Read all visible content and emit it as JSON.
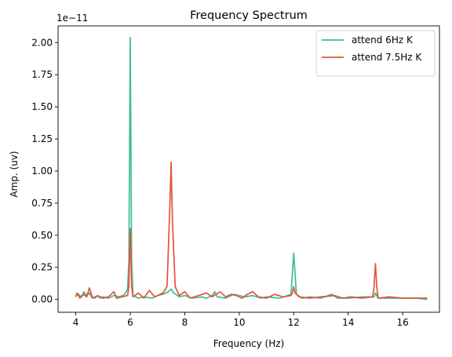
{
  "chart_data": {
    "type": "line",
    "title": "Frequency Spectrum",
    "xlabel": "Frequency (Hz)",
    "ylabel": "Amp. (uv)",
    "y_offset_label": "1e−11",
    "xlim": [
      3.35,
      17.35
    ],
    "ylim": [
      -0.1,
      2.13
    ],
    "x_ticks": [
      4,
      6,
      8,
      10,
      12,
      14,
      16
    ],
    "x_tick_labels": [
      "4",
      "6",
      "8",
      "10",
      "12",
      "14",
      "16"
    ],
    "y_ticks": [
      0.0,
      0.25,
      0.5,
      0.75,
      1.0,
      1.25,
      1.5,
      1.75,
      2.0
    ],
    "y_tick_labels": [
      "0.00",
      "0.25",
      "0.50",
      "0.75",
      "1.00",
      "1.25",
      "1.50",
      "1.75",
      "2.00"
    ],
    "y_scale_factor": 1e-11,
    "grid": false,
    "legend_position": "top-right",
    "series": [
      {
        "name": "attend 6Hz K",
        "color": "#3dbb9a",
        "points": [
          [
            4.0,
            0.03
          ],
          [
            4.1,
            0.04
          ],
          [
            4.2,
            0.02
          ],
          [
            4.3,
            0.06
          ],
          [
            4.4,
            0.03
          ],
          [
            4.5,
            0.05
          ],
          [
            4.6,
            0.01
          ],
          [
            4.7,
            0.02
          ],
          [
            4.8,
            0.03
          ],
          [
            4.9,
            0.01
          ],
          [
            5.0,
            0.02
          ],
          [
            5.2,
            0.01
          ],
          [
            5.4,
            0.03
          ],
          [
            5.6,
            0.02
          ],
          [
            5.8,
            0.04
          ],
          [
            5.9,
            0.08
          ],
          [
            5.95,
            0.3
          ],
          [
            6.0,
            2.04
          ],
          [
            6.05,
            0.3
          ],
          [
            6.1,
            0.03
          ],
          [
            6.3,
            0.01
          ],
          [
            6.5,
            0.02
          ],
          [
            6.8,
            0.01
          ],
          [
            7.0,
            0.03
          ],
          [
            7.2,
            0.04
          ],
          [
            7.4,
            0.06
          ],
          [
            7.5,
            0.08
          ],
          [
            7.6,
            0.05
          ],
          [
            7.8,
            0.02
          ],
          [
            8.0,
            0.03
          ],
          [
            8.3,
            0.01
          ],
          [
            8.6,
            0.02
          ],
          [
            8.8,
            0.01
          ],
          [
            9.0,
            0.03
          ],
          [
            9.1,
            0.06
          ],
          [
            9.2,
            0.02
          ],
          [
            9.5,
            0.01
          ],
          [
            9.8,
            0.04
          ],
          [
            10.0,
            0.03
          ],
          [
            10.2,
            0.02
          ],
          [
            10.5,
            0.03
          ],
          [
            10.8,
            0.01
          ],
          [
            11.0,
            0.02
          ],
          [
            11.5,
            0.01
          ],
          [
            11.9,
            0.04
          ],
          [
            12.0,
            0.36
          ],
          [
            12.1,
            0.04
          ],
          [
            12.3,
            0.01
          ],
          [
            12.6,
            0.02
          ],
          [
            13.0,
            0.01
          ],
          [
            13.4,
            0.04
          ],
          [
            13.6,
            0.01
          ],
          [
            14.0,
            0.01
          ],
          [
            14.5,
            0.02
          ],
          [
            14.95,
            0.02
          ],
          [
            15.0,
            0.05
          ],
          [
            15.1,
            0.01
          ],
          [
            15.5,
            0.01
          ],
          [
            16.0,
            0.01
          ],
          [
            16.5,
            0.01
          ],
          [
            16.9,
            0.0
          ]
        ]
      },
      {
        "name": "attend 7.5Hz K",
        "color": "#e2543a",
        "points": [
          [
            4.0,
            0.02
          ],
          [
            4.05,
            0.05
          ],
          [
            4.15,
            0.01
          ],
          [
            4.3,
            0.04
          ],
          [
            4.4,
            0.02
          ],
          [
            4.5,
            0.09
          ],
          [
            4.6,
            0.02
          ],
          [
            4.7,
            0.01
          ],
          [
            4.8,
            0.03
          ],
          [
            5.0,
            0.01
          ],
          [
            5.2,
            0.02
          ],
          [
            5.4,
            0.06
          ],
          [
            5.5,
            0.01
          ],
          [
            5.7,
            0.02
          ],
          [
            5.9,
            0.03
          ],
          [
            5.95,
            0.1
          ],
          [
            6.0,
            0.55
          ],
          [
            6.05,
            0.1
          ],
          [
            6.1,
            0.02
          ],
          [
            6.3,
            0.05
          ],
          [
            6.5,
            0.01
          ],
          [
            6.7,
            0.07
          ],
          [
            6.9,
            0.02
          ],
          [
            7.2,
            0.05
          ],
          [
            7.35,
            0.1
          ],
          [
            7.45,
            0.7
          ],
          [
            7.5,
            1.07
          ],
          [
            7.55,
            0.6
          ],
          [
            7.65,
            0.1
          ],
          [
            7.8,
            0.03
          ],
          [
            8.0,
            0.06
          ],
          [
            8.2,
            0.01
          ],
          [
            8.5,
            0.03
          ],
          [
            8.8,
            0.05
          ],
          [
            9.0,
            0.02
          ],
          [
            9.3,
            0.06
          ],
          [
            9.5,
            0.02
          ],
          [
            9.7,
            0.04
          ],
          [
            9.9,
            0.03
          ],
          [
            10.1,
            0.01
          ],
          [
            10.3,
            0.04
          ],
          [
            10.5,
            0.06
          ],
          [
            10.7,
            0.02
          ],
          [
            11.0,
            0.01
          ],
          [
            11.3,
            0.04
          ],
          [
            11.6,
            0.02
          ],
          [
            11.9,
            0.03
          ],
          [
            11.95,
            0.05
          ],
          [
            12.0,
            0.1
          ],
          [
            12.05,
            0.05
          ],
          [
            12.2,
            0.02
          ],
          [
            12.6,
            0.01
          ],
          [
            13.0,
            0.02
          ],
          [
            13.5,
            0.03
          ],
          [
            13.8,
            0.01
          ],
          [
            14.1,
            0.02
          ],
          [
            14.5,
            0.01
          ],
          [
            14.9,
            0.02
          ],
          [
            14.95,
            0.1
          ],
          [
            15.0,
            0.28
          ],
          [
            15.05,
            0.1
          ],
          [
            15.1,
            0.01
          ],
          [
            15.5,
            0.02
          ],
          [
            16.0,
            0.01
          ],
          [
            16.5,
            0.01
          ],
          [
            16.9,
            0.01
          ]
        ]
      }
    ]
  }
}
